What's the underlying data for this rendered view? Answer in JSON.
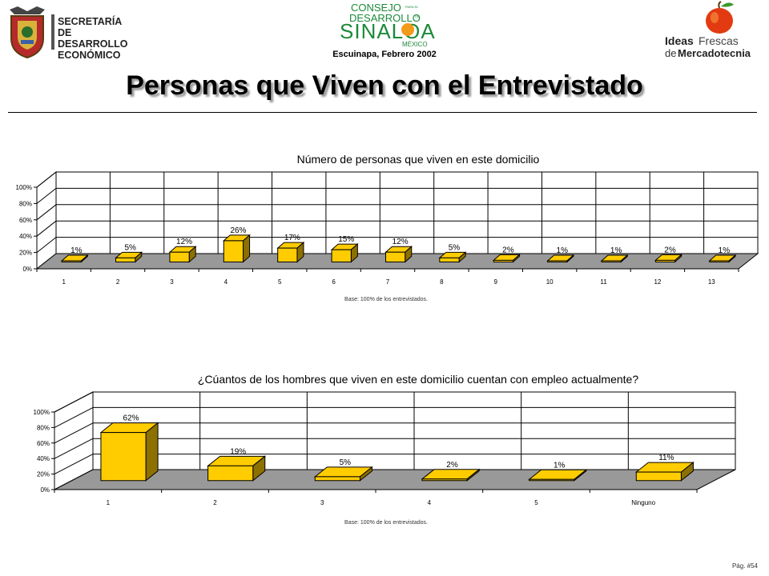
{
  "header": {
    "left_logo": {
      "lines": [
        "SECRETARÍA",
        "DE DESARROLLO",
        "ECONÓMICO"
      ]
    },
    "center_logo": {
      "consejo": "CONSEJO",
      "small_right": "PARA EL",
      "desarrollo": "DESARROLLO",
      "de": "DE",
      "sinaloa": "SINALOA",
      "mexico": "MÉXICO"
    },
    "subtitle": "Escuinapa, Febrero 2002",
    "right_logo": {
      "ideas": "Ideas",
      "frescas": "Frescas",
      "de": "de",
      "mercadotecnia": "Mercadotecnia"
    }
  },
  "title": "Personas que Viven con el Entrevistado",
  "page_number": "Pág. #54",
  "colors": {
    "bar_front": "#FFCC00",
    "bar_side": "#8C7000",
    "floor": "#999999",
    "wall": "#ffffff"
  },
  "chart_data": [
    {
      "type": "bar",
      "title": "Número de personas que viven en este domicilio",
      "categories": [
        "1",
        "2",
        "3",
        "4",
        "5",
        "6",
        "7",
        "8",
        "9",
        "10",
        "11",
        "12",
        "13"
      ],
      "values": [
        1,
        5,
        12,
        26,
        17,
        15,
        12,
        5,
        2,
        1,
        1,
        2,
        1
      ],
      "value_labels": [
        "1%",
        "5%",
        "12%",
        "26%",
        "17%",
        "15%",
        "12%",
        "5%",
        "2%",
        "1%",
        "1%",
        "2%",
        "1%"
      ],
      "yticks": [
        "0%",
        "20%",
        "40%",
        "60%",
        "80%",
        "100%"
      ],
      "ylim": [
        0,
        100
      ],
      "grid": true,
      "legend": "none",
      "footnote": "Base:  100% de los entrevistados."
    },
    {
      "type": "bar",
      "title": "¿Cúantos de los hombres que viven en este domicilio cuentan con empleo actualmente?",
      "categories": [
        "1",
        "2",
        "3",
        "4",
        "5",
        "Ninguno"
      ],
      "values": [
        62,
        19,
        5,
        2,
        1,
        11
      ],
      "value_labels": [
        "62%",
        "19%",
        "5%",
        "2%",
        "1%",
        "11%"
      ],
      "yticks": [
        "0%",
        "20%",
        "40%",
        "60%",
        "80%",
        "100%"
      ],
      "ylim": [
        0,
        100
      ],
      "grid": true,
      "legend": "none",
      "footnote": "Base:  100% de los entrevistados."
    }
  ]
}
